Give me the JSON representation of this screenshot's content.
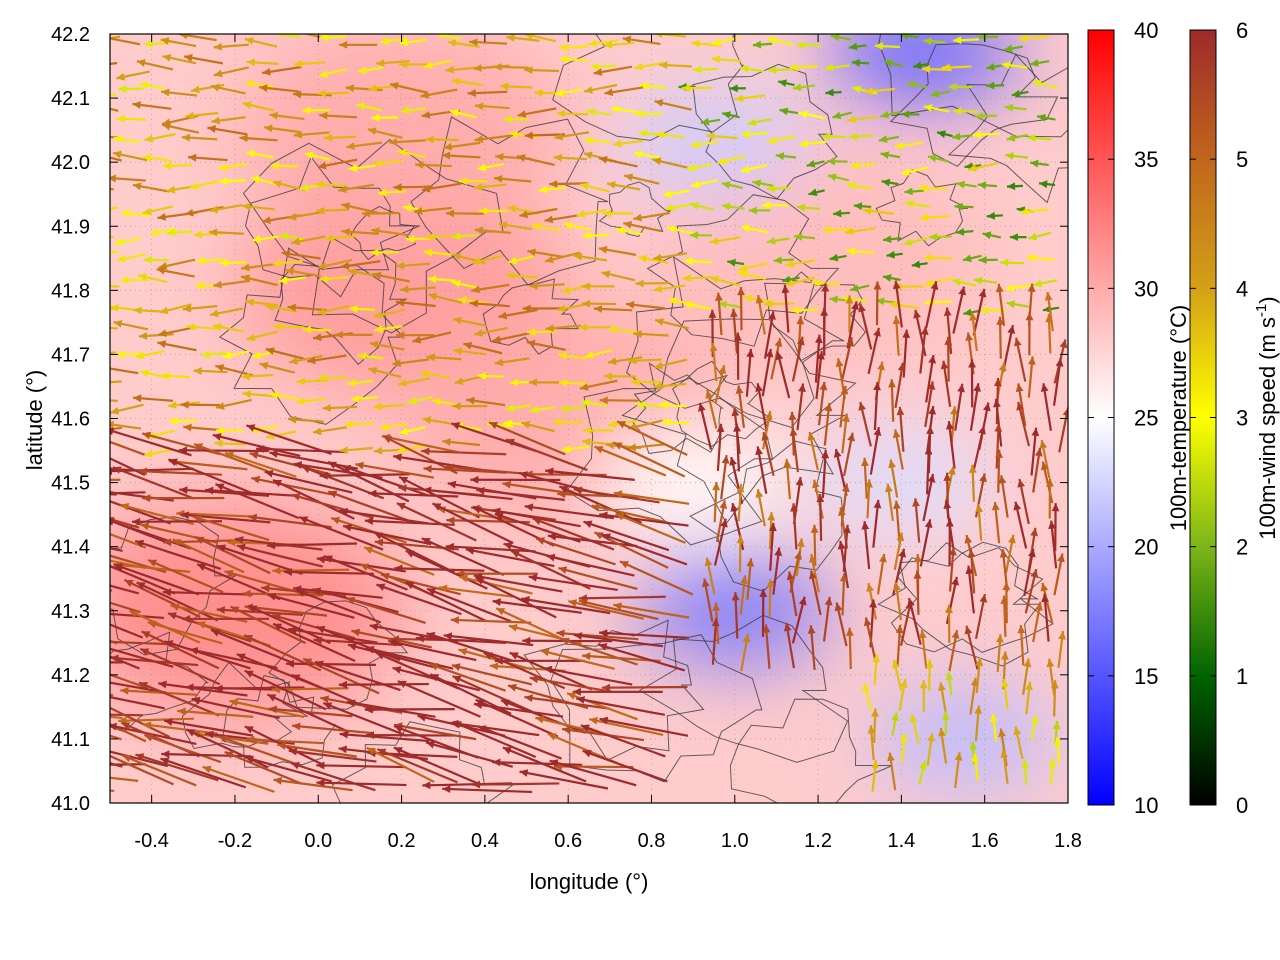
{
  "chart_data": {
    "type": "heatmap",
    "overlays": [
      "vector-field",
      "contour"
    ],
    "title": "",
    "xlabel": "longitude (°)",
    "ylabel": "latitude (°)",
    "xlim": [
      -0.5,
      1.8
    ],
    "ylim": [
      41.0,
      42.2
    ],
    "x_ticks": [
      "-0.4",
      "-0.2",
      "0.0",
      "0.2",
      "0.4",
      "0.6",
      "0.8",
      "1.0",
      "1.2",
      "1.4",
      "1.6",
      "1.8"
    ],
    "y_ticks": [
      "41.0",
      "41.1",
      "41.2",
      "41.3",
      "41.4",
      "41.5",
      "41.6",
      "41.7",
      "41.8",
      "41.9",
      "42.0",
      "42.1",
      "42.2"
    ],
    "grid": true,
    "temperature_colorbar": {
      "label": "100m-temperature (°C)",
      "range": [
        10,
        40
      ],
      "ticks": [
        "10",
        "15",
        "20",
        "25",
        "30",
        "35",
        "40"
      ],
      "colors": [
        "#0000ff",
        "#ffffff",
        "#ff0000"
      ]
    },
    "wind_colorbar": {
      "label_main": "100m-wind speed (m s",
      "label_sup": "-1",
      "label_end": ")",
      "range": [
        0,
        6
      ],
      "ticks": [
        "0",
        "1",
        "2",
        "3",
        "4",
        "5",
        "6"
      ],
      "colors": [
        "#000000",
        "#006400",
        "#7cb518",
        "#ffff00",
        "#d4a017",
        "#c0661c",
        "#9e2a2b"
      ]
    },
    "cool_regions": [
      {
        "lon": 1.0,
        "lat": 41.3,
        "temperature": 17
      },
      {
        "lon": 1.55,
        "lat": 41.1,
        "temperature": 21
      },
      {
        "lon": 1.45,
        "lat": 42.17,
        "temperature": 16
      },
      {
        "lon": 0.95,
        "lat": 42.03,
        "temperature": 22
      },
      {
        "lon": 1.4,
        "lat": 41.5,
        "temperature": 23
      },
      {
        "lon": 0.9,
        "lat": 41.5,
        "temperature": 25
      }
    ],
    "warm_regions": [
      {
        "lon": -0.2,
        "lat": 41.3,
        "temperature": 32
      },
      {
        "lon": 0.2,
        "lat": 41.8,
        "temperature": 31
      },
      {
        "lon": 0.6,
        "lat": 41.6,
        "temperature": 30
      },
      {
        "lon": 0.2,
        "lat": 42.05,
        "temperature": 30
      },
      {
        "lon": 1.2,
        "lat": 41.85,
        "temperature": 29
      }
    ],
    "wind_regimes": [
      {
        "region": "south-west",
        "lon_range": [
          -0.5,
          0.9
        ],
        "lat_range": [
          41.0,
          41.55
        ],
        "direction": "towards west-north-west",
        "speed": 6
      },
      {
        "region": "north-west",
        "lon_range": [
          -0.5,
          0.9
        ],
        "lat_range": [
          41.55,
          42.2
        ],
        "direction": "towards west",
        "speed": 3.8
      },
      {
        "region": "north-east",
        "lon_range": [
          0.9,
          1.8
        ],
        "lat_range": [
          41.75,
          42.2
        ],
        "direction": "towards west",
        "speed": 2.5
      },
      {
        "region": "south-east",
        "lon_range": [
          1.3,
          1.8
        ],
        "lat_range": [
          41.0,
          41.2
        ],
        "direction": "towards north",
        "speed": 3.5
      },
      {
        "region": "central-east",
        "lon_range": [
          0.9,
          1.8
        ],
        "lat_range": [
          41.2,
          41.75
        ],
        "direction": "towards north",
        "speed": 5.5
      }
    ]
  }
}
